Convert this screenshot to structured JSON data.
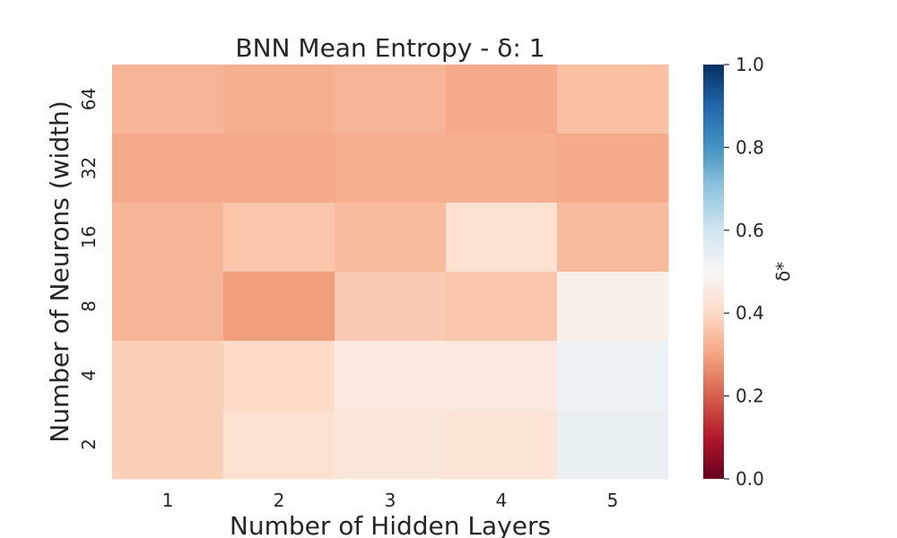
{
  "chart_data": {
    "type": "heatmap",
    "title": "BNN Mean Entropy - δ: 1",
    "xlabel": "Number of Hidden Layers",
    "ylabel": "Number of Neurons (width)",
    "x_categories": [
      "1",
      "2",
      "3",
      "4",
      "5"
    ],
    "y_categories": [
      "64",
      "32",
      "16",
      "8",
      "4",
      "2"
    ],
    "values": [
      [
        0.33,
        0.32,
        0.33,
        0.31,
        0.35
      ],
      [
        0.31,
        0.31,
        0.32,
        0.32,
        0.31
      ],
      [
        0.33,
        0.36,
        0.34,
        0.42,
        0.34
      ],
      [
        0.33,
        0.29,
        0.37,
        0.36,
        0.47
      ],
      [
        0.38,
        0.4,
        0.45,
        0.45,
        0.53
      ],
      [
        0.38,
        0.42,
        0.44,
        0.43,
        0.54
      ]
    ],
    "colormap": "RdBu",
    "vmin": 0.0,
    "vmax": 1.0,
    "colorbar": {
      "label": "δ*",
      "ticks": [
        "0.0",
        "0.2",
        "0.4",
        "0.6",
        "0.8",
        "1.0"
      ]
    }
  }
}
